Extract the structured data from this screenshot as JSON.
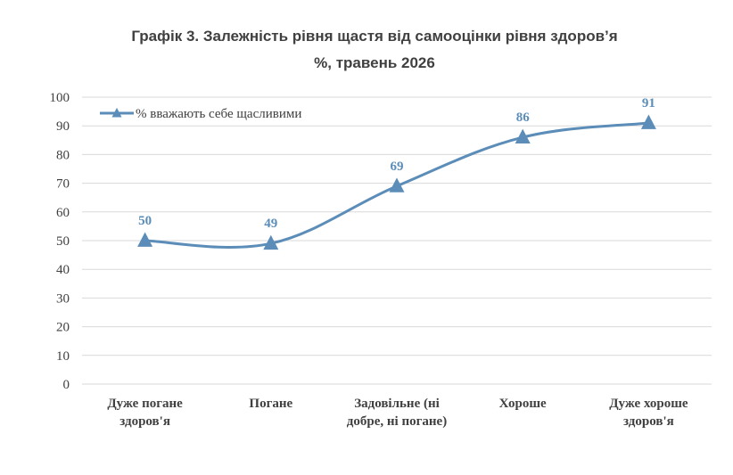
{
  "chart_data": {
    "type": "line",
    "title": "Графік 3. Залежність рівня щастя від самооцінки рівня здоров’я",
    "subtitle": "%, травень 2026",
    "categories": [
      [
        "Дуже погане",
        "здоров'я"
      ],
      [
        "Погане"
      ],
      [
        "Задовільне (ні",
        "добре, ні погане)"
      ],
      [
        "Хороше"
      ],
      [
        "Дуже хороше",
        "здоров'я"
      ]
    ],
    "series": [
      {
        "name": "% вважають себе щасливими",
        "values": [
          50,
          49,
          69,
          86,
          91
        ],
        "color": "#5B8DB8",
        "marker": "triangle",
        "smooth": true
      }
    ],
    "data_labels": [
      "50",
      "49",
      "69",
      "86",
      "91"
    ],
    "ylim": [
      0,
      100
    ],
    "yticks": [
      0,
      10,
      20,
      30,
      40,
      50,
      60,
      70,
      80,
      90,
      100
    ],
    "grid": true,
    "legend_position": "top-left",
    "xlabel": "",
    "ylabel": ""
  }
}
